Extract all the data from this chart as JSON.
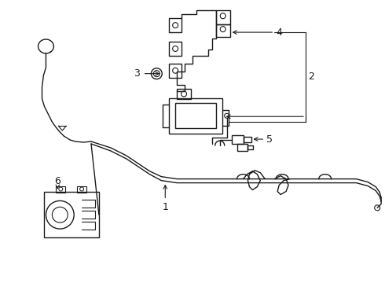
{
  "background_color": "#ffffff",
  "line_color": "#1a1a1a",
  "figsize": [
    4.9,
    3.6
  ],
  "dpi": 100
}
